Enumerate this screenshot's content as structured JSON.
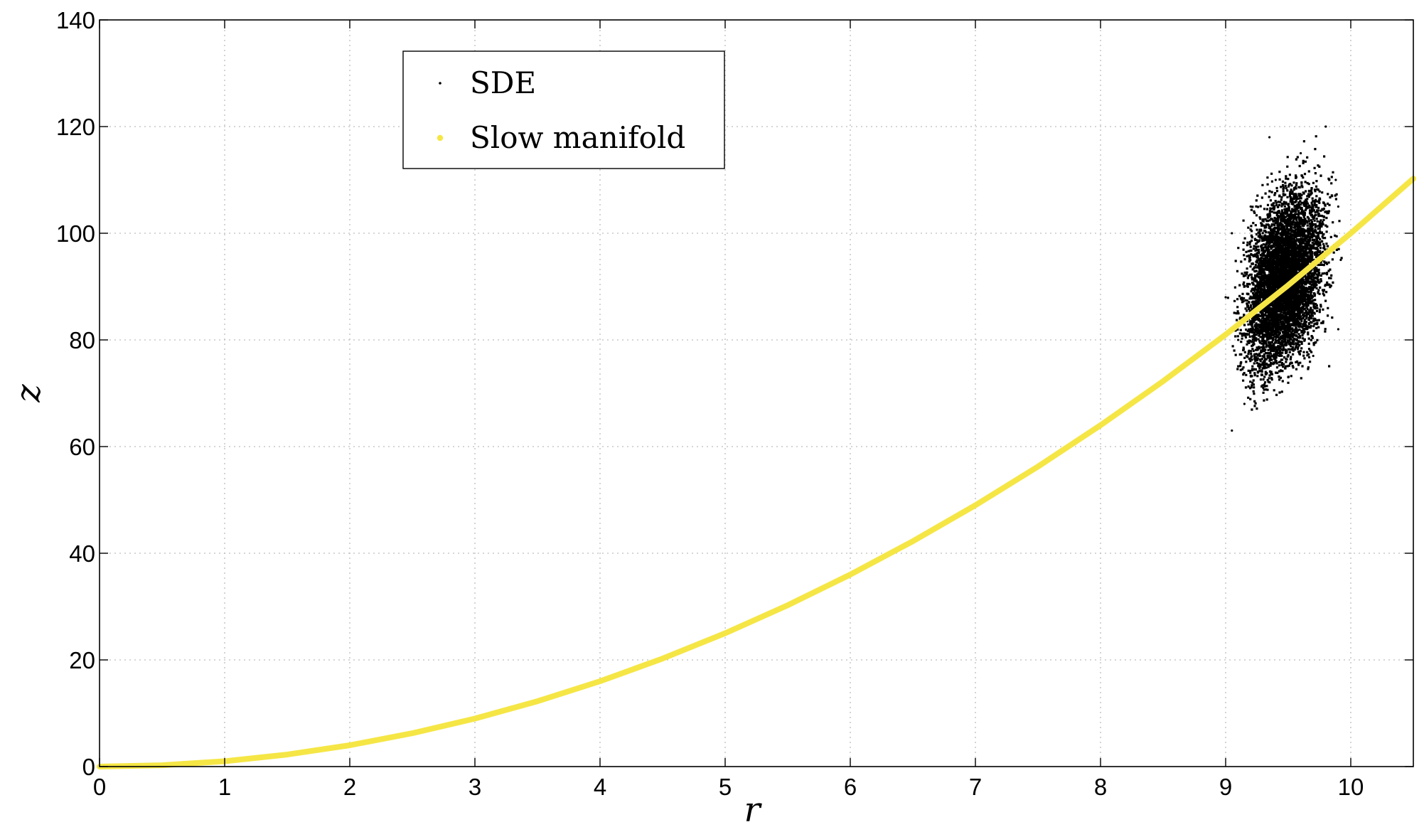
{
  "chart_data": {
    "type": "scatter",
    "xlabel": "r",
    "ylabel": "z",
    "xlim": [
      0,
      10.5
    ],
    "ylim": [
      0,
      140
    ],
    "xticks": [
      0,
      1,
      2,
      3,
      4,
      5,
      6,
      7,
      8,
      9,
      10
    ],
    "yticks": [
      0,
      20,
      40,
      60,
      80,
      100,
      120,
      140
    ],
    "grid": true,
    "legend_position": "top-left",
    "series": [
      {
        "name": "SDE",
        "kind": "scatter",
        "color": "#000000",
        "r_range": [
          9.0,
          9.95
        ],
        "z_center": [
          90,
          93
        ],
        "z_halfwidth": 23,
        "sample_points": [
          [
            9.05,
            63
          ],
          [
            9.15,
            68
          ],
          [
            9.3,
            71
          ],
          [
            9.5,
            73
          ],
          [
            9.7,
            77
          ],
          [
            9.9,
            82
          ],
          [
            9.05,
            100
          ],
          [
            9.2,
            105
          ],
          [
            9.4,
            110
          ],
          [
            9.6,
            115
          ],
          [
            9.8,
            120
          ],
          [
            9.1,
            80
          ],
          [
            9.3,
            90
          ],
          [
            9.5,
            95
          ],
          [
            9.7,
            100
          ],
          [
            9.9,
            105
          ],
          [
            9.88,
            110
          ],
          [
            9.92,
            95
          ],
          [
            9.0,
            88
          ],
          [
            9.35,
            118
          ]
        ]
      },
      {
        "name": "Slow manifold",
        "kind": "line",
        "color": "#f5e645",
        "x": [
          0,
          0.5,
          1,
          1.5,
          2,
          2.5,
          3,
          3.5,
          4,
          4.5,
          5,
          5.5,
          6,
          6.5,
          7,
          7.5,
          8,
          8.5,
          9,
          9.5,
          10,
          10.5
        ],
        "y": [
          0,
          0.25,
          1,
          2.25,
          4,
          6.25,
          9,
          12.25,
          16,
          20.25,
          25,
          30.25,
          36,
          42.25,
          49,
          56.25,
          64,
          72.25,
          81,
          90.25,
          100,
          110.25
        ]
      }
    ]
  }
}
